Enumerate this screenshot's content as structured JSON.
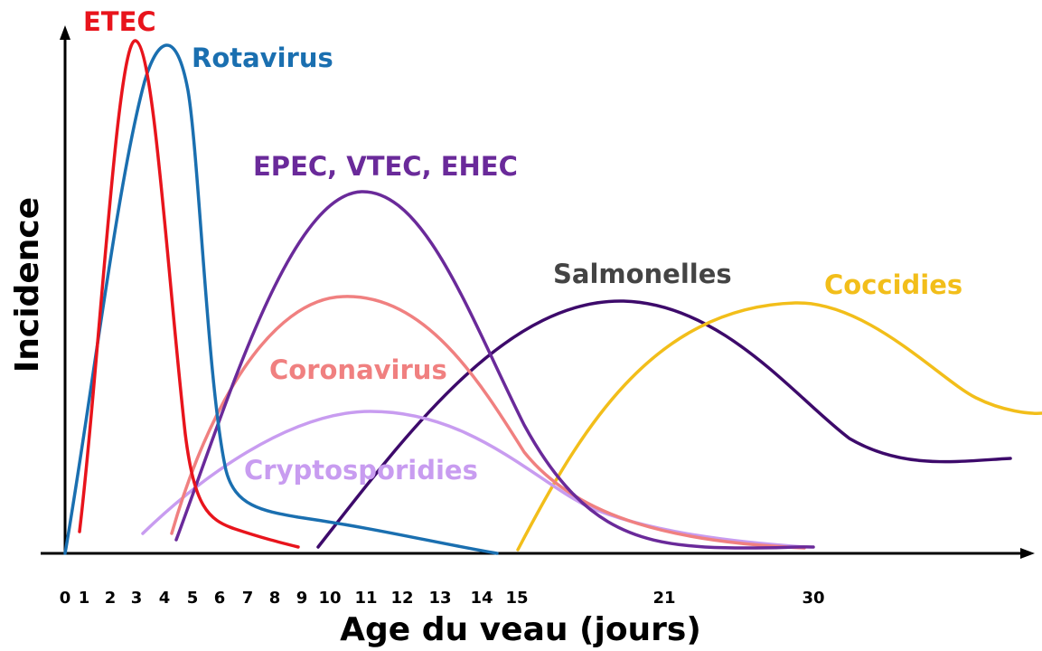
{
  "axes": {
    "y_label": "Incidence",
    "x_label": "Age du veau (jours)",
    "x_ticks": [
      "0",
      "1",
      "2",
      "3",
      "4",
      "5",
      "6",
      "7",
      "8",
      "9",
      "10",
      "11",
      "12",
      "13",
      "14",
      "15",
      "21",
      "30"
    ]
  },
  "curves": [
    {
      "label": "ETEC"
    },
    {
      "label": "Rotavirus"
    },
    {
      "label": "EPEC, VTEC, EHEC"
    },
    {
      "label": "Coronavirus"
    },
    {
      "label": "Cryptosporidies"
    },
    {
      "label": "Salmonelles"
    },
    {
      "label": "Coccidies"
    }
  ]
}
